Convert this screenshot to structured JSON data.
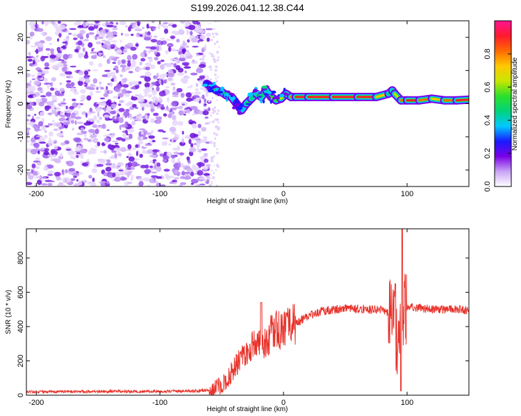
{
  "figure_title": "S199.2026.041.12.38.C44",
  "chart_data": [
    {
      "type": "heatmap",
      "title": "",
      "xlabel": "Height of straight line (km)",
      "ylabel": "Frequency (Hz)",
      "xlim": [
        -208,
        150
      ],
      "ylim": [
        -25,
        25
      ],
      "xticks": [
        -200,
        -100,
        0,
        100
      ],
      "yticks": [
        -20,
        -10,
        0,
        10,
        20
      ],
      "noise_region_x": [
        -208,
        -60
      ],
      "signal_track": {
        "x": [
          -62,
          -58,
          -54,
          -50,
          -46,
          -42,
          -38,
          -34,
          -30,
          -26,
          -22,
          -18,
          -14,
          -10,
          -6,
          -2,
          2,
          6,
          10,
          20,
          40,
          60,
          75,
          85,
          88,
          90,
          95,
          100,
          110,
          120,
          130,
          140,
          150
        ],
        "freq_hz": [
          6,
          5,
          4,
          3.5,
          2.5,
          2,
          0,
          -2,
          0,
          1.5,
          3,
          2,
          4,
          2,
          1,
          1.5,
          3,
          2,
          2,
          2,
          2,
          2,
          2,
          3,
          4,
          3,
          1,
          1,
          1,
          1.5,
          1,
          1,
          1.2
        ],
        "amplitude": [
          0.25,
          0.3,
          0.3,
          0.35,
          0.3,
          0.35,
          0.3,
          0.25,
          0.4,
          0.45,
          0.4,
          0.5,
          0.45,
          0.5,
          0.55,
          0.6,
          0.6,
          0.65,
          0.9,
          0.95,
          0.95,
          0.95,
          0.92,
          0.55,
          0.4,
          0.5,
          0.7,
          0.9,
          0.95,
          0.6,
          0.8,
          0.9,
          0.85
        ]
      },
      "colorbar": {
        "label": "Normalized spectral amplitude",
        "range": [
          0,
          1
        ],
        "ticks": [
          "0.0",
          "0.2",
          "0.4",
          "0.6",
          "0.8"
        ],
        "colormap": [
          "#ffffff",
          "#c9a3f5",
          "#7a00e6",
          "#1a1aff",
          "#00c8ff",
          "#00d47a",
          "#2be02b",
          "#c8e600",
          "#ffc800",
          "#ff6a00",
          "#ff1a2e",
          "#ff1493"
        ]
      }
    },
    {
      "type": "line",
      "title": "",
      "xlabel": "Height of straight line (km)",
      "ylabel": "SNR (10 * v/v)",
      "xlim": [
        -208,
        150
      ],
      "ylim": [
        0,
        970
      ],
      "xticks": [
        -200,
        -100,
        0,
        100
      ],
      "yticks": [
        0,
        200,
        400,
        600,
        800
      ],
      "series": [
        {
          "name": "SNR",
          "color": "#e8322a",
          "x": [
            -208,
            -150,
            -100,
            -70,
            -60,
            -50,
            -45,
            -40,
            -35,
            -30,
            -25,
            -20,
            -15,
            -10,
            -5,
            0,
            10,
            20,
            30,
            50,
            70,
            80,
            85,
            88,
            90,
            92,
            94,
            95,
            96,
            98,
            100,
            110,
            120,
            130,
            140,
            150
          ],
          "y": [
            20,
            22,
            22,
            25,
            30,
            60,
            100,
            160,
            210,
            250,
            290,
            330,
            300,
            360,
            390,
            370,
            420,
            460,
            490,
            505,
            500,
            500,
            480,
            450,
            400,
            320,
            300,
            540,
            430,
            490,
            510,
            510,
            500,
            500,
            500,
            495
          ]
        }
      ],
      "annotations": [
        {
          "x": -18,
          "y": 540,
          "label": ""
        },
        {
          "x": 96,
          "y": 970,
          "label": ""
        },
        {
          "x": 95,
          "y": 30,
          "label": ""
        }
      ]
    }
  ]
}
